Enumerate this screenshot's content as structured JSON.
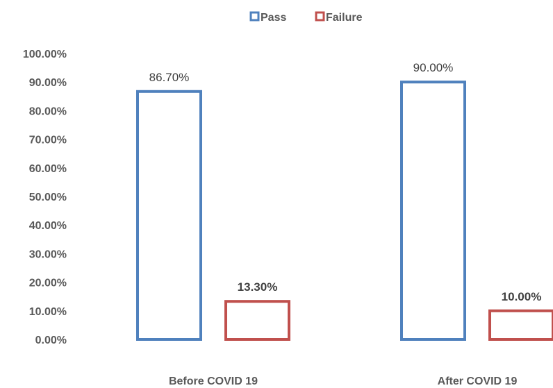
{
  "chart_data": {
    "type": "bar",
    "categories": [
      "Before COVID 19",
      "After COVID 19"
    ],
    "series": [
      {
        "name": "Pass",
        "values": [
          0.867,
          0.9
        ],
        "labels": [
          "86.70%",
          "90.00%"
        ],
        "color": "#4F81BD"
      },
      {
        "name": "Failure",
        "values": [
          0.133,
          0.1
        ],
        "labels": [
          "13.30%",
          "10.00%"
        ],
        "color": "#C0504D"
      }
    ],
    "ylim": [
      0,
      1
    ],
    "yticks": [
      {
        "value": 0.0,
        "label": "0.00%"
      },
      {
        "value": 0.1,
        "label": "10.00%"
      },
      {
        "value": 0.2,
        "label": "20.00%"
      },
      {
        "value": 0.3,
        "label": "30.00%"
      },
      {
        "value": 0.4,
        "label": "40.00%"
      },
      {
        "value": 0.5,
        "label": "50.00%"
      },
      {
        "value": 0.6,
        "label": "60.00%"
      },
      {
        "value": 0.7,
        "label": "70.00%"
      },
      {
        "value": 0.8,
        "label": "80.00%"
      },
      {
        "value": 0.9,
        "label": "90.00%"
      },
      {
        "value": 1.0,
        "label": "100.00%"
      }
    ],
    "legend_position": "top",
    "grid": false,
    "bar_style": "outlined"
  }
}
